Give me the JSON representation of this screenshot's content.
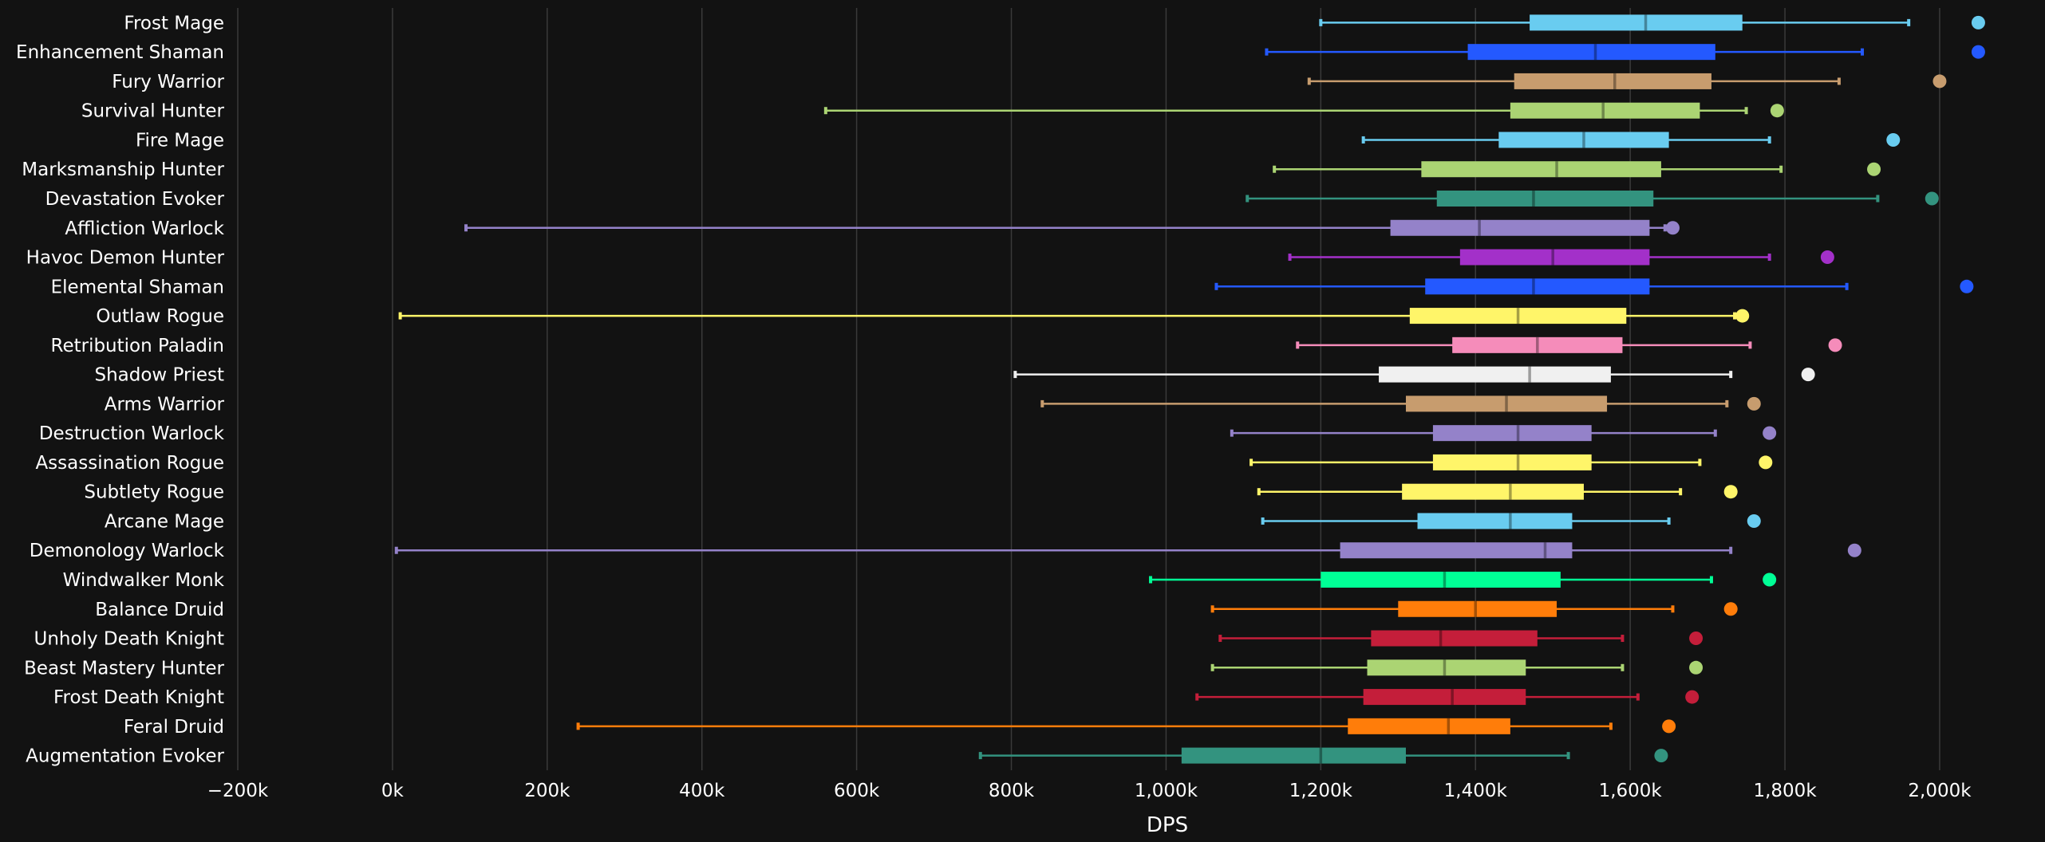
{
  "chart_data": {
    "type": "boxplot",
    "orientation": "horizontal",
    "xlabel": "DPS",
    "xlim": [
      -200000,
      2130000
    ],
    "xticks": [
      -200000,
      0,
      200000,
      400000,
      600000,
      800000,
      1000000,
      1200000,
      1400000,
      1600000,
      1800000,
      2000000
    ],
    "xtick_labels": [
      "−200k",
      "0k",
      "200k",
      "400k",
      "600k",
      "800k",
      "1,000k",
      "1,200k",
      "1,400k",
      "1,600k",
      "1,800k",
      "2,000k"
    ],
    "grid": true,
    "series": [
      {
        "name": "Frost Mage",
        "color": "#69ccf0",
        "min": 1200000,
        "q1": 1470000,
        "median": 1620000,
        "q3": 1745000,
        "max": 1960000,
        "outlier": 2050000
      },
      {
        "name": "Enhancement Shaman",
        "color": "#2459ff",
        "min": 1130000,
        "q1": 1390000,
        "median": 1555000,
        "q3": 1710000,
        "max": 1900000,
        "outlier": 2050000
      },
      {
        "name": "Fury Warrior",
        "color": "#c79c6e",
        "min": 1185000,
        "q1": 1450000,
        "median": 1580000,
        "q3": 1705000,
        "max": 1870000,
        "outlier": 2000000
      },
      {
        "name": "Survival Hunter",
        "color": "#abd473",
        "min": 560000,
        "q1": 1445000,
        "median": 1565000,
        "q3": 1690000,
        "max": 1750000,
        "outlier": 1790000
      },
      {
        "name": "Fire Mage",
        "color": "#69ccf0",
        "min": 1255000,
        "q1": 1430000,
        "median": 1540000,
        "q3": 1650000,
        "max": 1780000,
        "outlier": 1940000
      },
      {
        "name": "Marksmanship Hunter",
        "color": "#abd473",
        "min": 1140000,
        "q1": 1330000,
        "median": 1505000,
        "q3": 1640000,
        "max": 1795000,
        "outlier": 1915000
      },
      {
        "name": "Devastation Evoker",
        "color": "#33937f",
        "min": 1105000,
        "q1": 1350000,
        "median": 1475000,
        "q3": 1630000,
        "max": 1920000,
        "outlier": 1990000
      },
      {
        "name": "Affliction Warlock",
        "color": "#9482c9",
        "min": 95000,
        "q1": 1290000,
        "median": 1405000,
        "q3": 1625000,
        "max": 1645000,
        "outlier": 1655000
      },
      {
        "name": "Havoc Demon Hunter",
        "color": "#a330c9",
        "min": 1160000,
        "q1": 1380000,
        "median": 1500000,
        "q3": 1625000,
        "max": 1780000,
        "outlier": 1855000
      },
      {
        "name": "Elemental Shaman",
        "color": "#2459ff",
        "min": 1065000,
        "q1": 1335000,
        "median": 1475000,
        "q3": 1625000,
        "max": 1880000,
        "outlier": 2035000
      },
      {
        "name": "Outlaw Rogue",
        "color": "#fff569",
        "min": 10000,
        "q1": 1315000,
        "median": 1455000,
        "q3": 1595000,
        "max": 1735000,
        "outlier": 1745000
      },
      {
        "name": "Retribution Paladin",
        "color": "#f58cba",
        "min": 1170000,
        "q1": 1370000,
        "median": 1480000,
        "q3": 1590000,
        "max": 1755000,
        "outlier": 1865000
      },
      {
        "name": "Shadow Priest",
        "color": "#f0f0f0",
        "min": 805000,
        "q1": 1275000,
        "median": 1470000,
        "q3": 1575000,
        "max": 1730000,
        "outlier": 1830000
      },
      {
        "name": "Arms Warrior",
        "color": "#c79c6e",
        "min": 840000,
        "q1": 1310000,
        "median": 1440000,
        "q3": 1570000,
        "max": 1725000,
        "outlier": 1760000
      },
      {
        "name": "Destruction Warlock",
        "color": "#9482c9",
        "min": 1085000,
        "q1": 1345000,
        "median": 1455000,
        "q3": 1550000,
        "max": 1710000,
        "outlier": 1780000
      },
      {
        "name": "Assassination Rogue",
        "color": "#fff569",
        "min": 1110000,
        "q1": 1345000,
        "median": 1455000,
        "q3": 1550000,
        "max": 1690000,
        "outlier": 1775000
      },
      {
        "name": "Subtlety Rogue",
        "color": "#fff569",
        "min": 1120000,
        "q1": 1305000,
        "median": 1445000,
        "q3": 1540000,
        "max": 1665000,
        "outlier": 1730000
      },
      {
        "name": "Arcane Mage",
        "color": "#69ccf0",
        "min": 1125000,
        "q1": 1325000,
        "median": 1445000,
        "q3": 1525000,
        "max": 1650000,
        "outlier": 1760000
      },
      {
        "name": "Demonology Warlock",
        "color": "#9482c9",
        "min": 5000,
        "q1": 1225000,
        "median": 1490000,
        "q3": 1525000,
        "max": 1730000,
        "outlier": 1890000
      },
      {
        "name": "Windwalker Monk",
        "color": "#00ff96",
        "min": 980000,
        "q1": 1200000,
        "median": 1360000,
        "q3": 1510000,
        "max": 1705000,
        "outlier": 1780000
      },
      {
        "name": "Balance Druid",
        "color": "#ff7d0a",
        "min": 1060000,
        "q1": 1300000,
        "median": 1400000,
        "q3": 1505000,
        "max": 1655000,
        "outlier": 1730000
      },
      {
        "name": "Unholy Death Knight",
        "color": "#c41e3a",
        "min": 1070000,
        "q1": 1265000,
        "median": 1355000,
        "q3": 1480000,
        "max": 1590000,
        "outlier": 1685000
      },
      {
        "name": "Beast Mastery Hunter",
        "color": "#abd473",
        "min": 1060000,
        "q1": 1260000,
        "median": 1360000,
        "q3": 1465000,
        "max": 1590000,
        "outlier": 1685000
      },
      {
        "name": "Frost Death Knight",
        "color": "#c41e3a",
        "min": 1040000,
        "q1": 1255000,
        "median": 1370000,
        "q3": 1465000,
        "max": 1610000,
        "outlier": 1680000
      },
      {
        "name": "Feral Druid",
        "color": "#ff7d0a",
        "min": 240000,
        "q1": 1235000,
        "median": 1365000,
        "q3": 1445000,
        "max": 1575000,
        "outlier": 1650000
      },
      {
        "name": "Augmentation Evoker",
        "color": "#33937f",
        "min": 760000,
        "q1": 1020000,
        "median": 1200000,
        "q3": 1310000,
        "max": 1520000,
        "outlier": 1640000
      }
    ]
  }
}
